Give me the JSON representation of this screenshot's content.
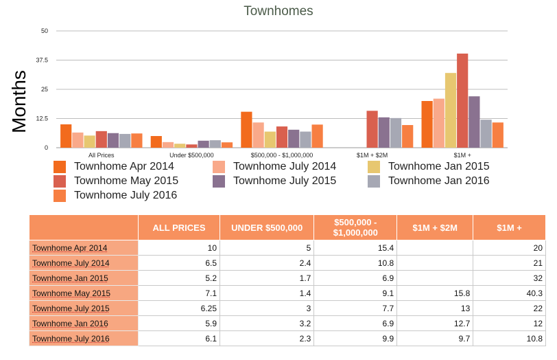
{
  "chart_data": {
    "type": "bar",
    "title": "Townhomes",
    "ylabel": "Months",
    "ylim": [
      0,
      50
    ],
    "yticks": [
      "0",
      "12.5",
      "25",
      "37.5",
      "50"
    ],
    "categories": [
      "All Prices",
      "Under $500,000",
      "$500,000 - $1,000,000",
      "$1M + $2M",
      "$1M +"
    ],
    "series": [
      {
        "name": "Townhome Apr 2014",
        "color": "#f26b1d",
        "values": [
          10,
          5,
          15.4,
          null,
          20
        ]
      },
      {
        "name": "Townhome July 2014",
        "color": "#f9a98a",
        "values": [
          6.5,
          2.4,
          10.8,
          null,
          21
        ]
      },
      {
        "name": "Townhome Jan 2015",
        "color": "#e7c770",
        "values": [
          5.2,
          1.7,
          6.9,
          null,
          32
        ]
      },
      {
        "name": "Townhome May 2015",
        "color": "#d9604f",
        "values": [
          7.1,
          1.4,
          9.1,
          15.8,
          40.3
        ]
      },
      {
        "name": "Townhome July 2015",
        "color": "#8a7290",
        "values": [
          6.25,
          3,
          7.7,
          13,
          22
        ]
      },
      {
        "name": "Townhome Jan 2016",
        "color": "#a6a8b4",
        "values": [
          5.9,
          3.2,
          6.9,
          12.7,
          12
        ]
      },
      {
        "name": "Townhome July 2016",
        "color": "#f77f42",
        "values": [
          6.1,
          2.3,
          9.9,
          9.7,
          10.8
        ]
      }
    ],
    "grid": true,
    "legend_position": "bottom"
  },
  "table": {
    "headers": [
      "",
      "ALL PRICES",
      "UNDER $500,000",
      "$500,000 - $1,000,000",
      "$1M + $2M",
      "$1M +"
    ],
    "rows": [
      {
        "label": "Townhome Apr 2014",
        "cells": [
          "10",
          "5",
          "15.4",
          "",
          "20"
        ]
      },
      {
        "label": "Townhome July 2014",
        "cells": [
          "6.5",
          "2.4",
          "10.8",
          "",
          "21"
        ]
      },
      {
        "label": "Townhome Jan 2015",
        "cells": [
          "5.2",
          "1.7",
          "6.9",
          "",
          "32"
        ]
      },
      {
        "label": "Townhome May 2015",
        "cells": [
          "7.1",
          "1.4",
          "9.1",
          "15.8",
          "40.3"
        ]
      },
      {
        "label": "Townhome July 2015",
        "cells": [
          "6.25",
          "3",
          "7.7",
          "13",
          "22"
        ]
      },
      {
        "label": "Townhome Jan 2016",
        "cells": [
          "5.9",
          "3.2",
          "6.9",
          "12.7",
          "12"
        ]
      },
      {
        "label": "Townhome July 2016",
        "cells": [
          "6.1",
          "2.3",
          "9.9",
          "9.7",
          "10.8"
        ]
      }
    ]
  }
}
